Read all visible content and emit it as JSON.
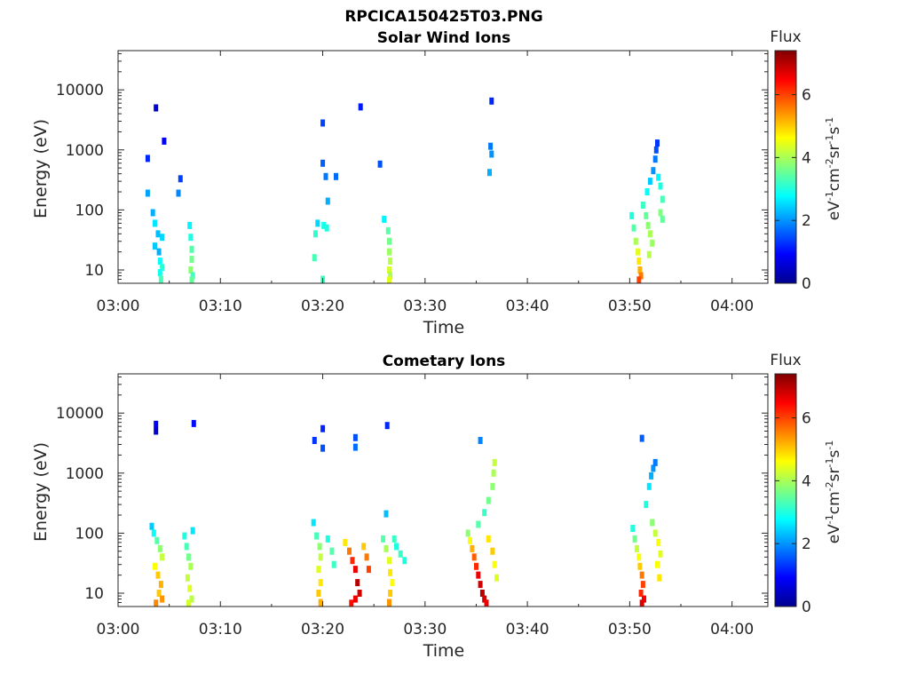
{
  "figure_title": "RPCICA150425T03.PNG",
  "colorbar": {
    "label": "Flux",
    "unit_main": "eV",
    "unit_parts": [
      "eV",
      "-1",
      "cm",
      "-2",
      "sr",
      "-1",
      "s",
      "-1"
    ],
    "ticks": [
      "0",
      "2",
      "4",
      "6"
    ],
    "range": [
      0,
      7.4
    ],
    "colormap": "jet"
  },
  "chart_data": [
    {
      "type": "heatmap",
      "title": "Solar Wind Ions",
      "xlabel": "Time",
      "ylabel": "Energy (eV)",
      "x_ticks": [
        "03:00",
        "03:10",
        "03:20",
        "03:30",
        "03:40",
        "03:50",
        "04:00"
      ],
      "y_ticks": [
        "10",
        "100",
        "1000",
        "10000"
      ],
      "xlim_minutes": [
        0,
        63.5
      ],
      "ylim": [
        6,
        45000
      ],
      "y_scale": "log",
      "points": [
        [
          3.7,
          5000,
          0.6
        ],
        [
          4.5,
          1400,
          0.9
        ],
        [
          2.9,
          720,
          1.2
        ],
        [
          6.1,
          330,
          1.4
        ],
        [
          2.9,
          190,
          2.1
        ],
        [
          5.9,
          190,
          1.9
        ],
        [
          3.4,
          90,
          2.2
        ],
        [
          3.6,
          60,
          2.6
        ],
        [
          3.9,
          40,
          2.3
        ],
        [
          4.3,
          35,
          2.5
        ],
        [
          3.6,
          25,
          2.4
        ],
        [
          4.0,
          20,
          2.2
        ],
        [
          4.1,
          14,
          2.8
        ],
        [
          4.3,
          11,
          3.1
        ],
        [
          4.1,
          9,
          2.9
        ],
        [
          4.2,
          7,
          3.3
        ],
        [
          7.0,
          55,
          2.7
        ],
        [
          7.1,
          35,
          3.0
        ],
        [
          7.2,
          22,
          3.4
        ],
        [
          7.2,
          15,
          3.6
        ],
        [
          7.1,
          10,
          3.8
        ],
        [
          7.3,
          8,
          3.2
        ],
        [
          7.2,
          6.8,
          3.5
        ],
        [
          19.3,
          40,
          3.1
        ],
        [
          19.2,
          16,
          3.3
        ],
        [
          20.0,
          2800,
          1.4
        ],
        [
          20.0,
          600,
          1.6
        ],
        [
          20.3,
          360,
          1.8
        ],
        [
          21.3,
          360,
          1.7
        ],
        [
          20.5,
          140,
          2.2
        ],
        [
          19.5,
          60,
          2.5
        ],
        [
          20.1,
          55,
          2.9
        ],
        [
          20.4,
          50,
          3.0
        ],
        [
          20.0,
          7,
          3.2
        ],
        [
          23.7,
          5200,
          1.1
        ],
        [
          25.6,
          580,
          1.5
        ],
        [
          26.0,
          70,
          2.7
        ],
        [
          26.4,
          45,
          3.4
        ],
        [
          26.5,
          30,
          3.6
        ],
        [
          26.5,
          20,
          3.9
        ],
        [
          26.6,
          14,
          4.1
        ],
        [
          26.5,
          10,
          4.3
        ],
        [
          26.6,
          8,
          4.0
        ],
        [
          26.5,
          6.8,
          4.4
        ],
        [
          36.5,
          6500,
          1.2
        ],
        [
          36.4,
          1150,
          1.8
        ],
        [
          36.5,
          850,
          2.0
        ],
        [
          36.3,
          420,
          2.2
        ],
        [
          50.2,
          80,
          3.0
        ],
        [
          50.4,
          50,
          3.4
        ],
        [
          50.6,
          30,
          4.0
        ],
        [
          50.8,
          20,
          4.4
        ],
        [
          50.9,
          14,
          4.8
        ],
        [
          51.0,
          10,
          5.2
        ],
        [
          51.1,
          8,
          5.6
        ],
        [
          50.9,
          6.8,
          6.0
        ],
        [
          51.3,
          120,
          3.2
        ],
        [
          51.6,
          80,
          3.5
        ],
        [
          51.8,
          55,
          3.8
        ],
        [
          52.0,
          40,
          4.0
        ],
        [
          52.2,
          28,
          3.9
        ],
        [
          51.9,
          18,
          4.1
        ],
        [
          51.7,
          200,
          2.8
        ],
        [
          52.0,
          300,
          2.4
        ],
        [
          52.3,
          450,
          2.0
        ],
        [
          52.5,
          700,
          1.8
        ],
        [
          52.6,
          1000,
          1.5
        ],
        [
          52.7,
          1300,
          1.3
        ],
        [
          52.8,
          350,
          2.7
        ],
        [
          53.0,
          250,
          3.0
        ],
        [
          53.2,
          150,
          3.3
        ],
        [
          53.0,
          90,
          3.7
        ],
        [
          53.2,
          70,
          3.5
        ]
      ]
    },
    {
      "type": "heatmap",
      "title": "Cometary Ions",
      "xlabel": "Time",
      "ylabel": "Energy (eV)",
      "x_ticks": [
        "03:00",
        "03:10",
        "03:20",
        "03:30",
        "03:40",
        "03:50",
        "04:00"
      ],
      "y_ticks": [
        "10",
        "100",
        "1000",
        "10000"
      ],
      "xlim_minutes": [
        0,
        63.5
      ],
      "ylim": [
        6,
        45000
      ],
      "y_scale": "log",
      "points": [
        [
          3.7,
          6500,
          0.9
        ],
        [
          3.7,
          5000,
          0.6
        ],
        [
          7.4,
          6700,
          1.0
        ],
        [
          3.3,
          130,
          2.4
        ],
        [
          3.5,
          100,
          2.8
        ],
        [
          3.8,
          75,
          3.4
        ],
        [
          4.1,
          55,
          3.8
        ],
        [
          4.3,
          40,
          4.2
        ],
        [
          3.6,
          28,
          4.6
        ],
        [
          3.9,
          20,
          5.0
        ],
        [
          4.2,
          14,
          5.2
        ],
        [
          4.0,
          10,
          5.0
        ],
        [
          4.3,
          8,
          5.4
        ],
        [
          3.7,
          6.8,
          5.5
        ],
        [
          6.5,
          90,
          3.0
        ],
        [
          6.7,
          60,
          3.3
        ],
        [
          6.9,
          40,
          3.6
        ],
        [
          7.1,
          28,
          4.0
        ],
        [
          6.8,
          18,
          4.2
        ],
        [
          7.0,
          12,
          4.4
        ],
        [
          7.2,
          8,
          4.1
        ],
        [
          6.9,
          6.8,
          4.3
        ],
        [
          7.3,
          110,
          2.6
        ],
        [
          19.1,
          150,
          2.6
        ],
        [
          19.4,
          90,
          3.3
        ],
        [
          19.7,
          60,
          3.8
        ],
        [
          19.8,
          40,
          4.2
        ],
        [
          19.6,
          25,
          4.4
        ],
        [
          19.8,
          15,
          4.8
        ],
        [
          19.6,
          10,
          5.0
        ],
        [
          19.8,
          7,
          5.2
        ],
        [
          20.5,
          80,
          3.0
        ],
        [
          20.9,
          50,
          3.4
        ],
        [
          21.1,
          30,
          3.2
        ],
        [
          19.2,
          3500,
          1.3
        ],
        [
          20.0,
          5500,
          1.2
        ],
        [
          20.0,
          2600,
          1.5
        ],
        [
          23.2,
          3900,
          1.5
        ],
        [
          23.2,
          2700,
          1.7
        ],
        [
          22.2,
          70,
          4.8
        ],
        [
          22.6,
          50,
          5.6
        ],
        [
          22.9,
          35,
          6.2
        ],
        [
          23.2,
          25,
          6.6
        ],
        [
          23.4,
          15,
          7.0
        ],
        [
          23.6,
          10,
          6.8
        ],
        [
          23.2,
          8,
          6.6
        ],
        [
          22.8,
          6.8,
          6.4
        ],
        [
          24.0,
          60,
          5.0
        ],
        [
          24.3,
          40,
          5.6
        ],
        [
          24.5,
          25,
          6.0
        ],
        [
          26.3,
          6200,
          1.2
        ],
        [
          26.2,
          210,
          2.3
        ],
        [
          25.9,
          80,
          3.4
        ],
        [
          26.2,
          55,
          4.0
        ],
        [
          26.5,
          35,
          4.4
        ],
        [
          26.6,
          22,
          4.8
        ],
        [
          26.8,
          15,
          4.6
        ],
        [
          26.6,
          10,
          5.0
        ],
        [
          26.5,
          7,
          5.4
        ],
        [
          27.0,
          80,
          3.2
        ],
        [
          27.2,
          60,
          3.0
        ],
        [
          27.6,
          45,
          3.2
        ],
        [
          28.0,
          35,
          3.0
        ],
        [
          35.4,
          3500,
          1.9
        ],
        [
          34.2,
          100,
          3.8
        ],
        [
          34.4,
          75,
          4.6
        ],
        [
          34.6,
          55,
          5.2
        ],
        [
          34.8,
          40,
          5.8
        ],
        [
          35.0,
          28,
          6.2
        ],
        [
          35.2,
          20,
          6.6
        ],
        [
          35.4,
          14,
          6.8
        ],
        [
          35.6,
          10,
          7.0
        ],
        [
          35.8,
          8,
          6.8
        ],
        [
          36.0,
          6.8,
          6.6
        ],
        [
          35.2,
          140,
          3.4
        ],
        [
          35.8,
          220,
          3.2
        ],
        [
          36.2,
          350,
          3.6
        ],
        [
          36.6,
          600,
          3.8
        ],
        [
          36.7,
          1000,
          4.0
        ],
        [
          36.8,
          1500,
          4.2
        ],
        [
          36.2,
          80,
          4.8
        ],
        [
          36.6,
          50,
          5.0
        ],
        [
          36.8,
          30,
          4.6
        ],
        [
          37.0,
          18,
          4.4
        ],
        [
          51.2,
          3800,
          1.6
        ],
        [
          50.3,
          120,
          3.0
        ],
        [
          50.5,
          80,
          3.6
        ],
        [
          50.7,
          55,
          4.2
        ],
        [
          50.9,
          40,
          4.6
        ],
        [
          51.0,
          28,
          5.0
        ],
        [
          51.2,
          20,
          5.6
        ],
        [
          51.3,
          14,
          6.0
        ],
        [
          51.1,
          10,
          6.2
        ],
        [
          51.4,
          8,
          6.5
        ],
        [
          51.2,
          6.8,
          6.7
        ],
        [
          51.6,
          300,
          3.0
        ],
        [
          51.9,
          600,
          2.6
        ],
        [
          52.1,
          900,
          2.2
        ],
        [
          52.3,
          1200,
          2.0
        ],
        [
          52.5,
          1500,
          1.8
        ],
        [
          52.2,
          150,
          3.8
        ],
        [
          52.5,
          100,
          4.2
        ],
        [
          52.8,
          70,
          4.6
        ],
        [
          53.0,
          45,
          4.4
        ],
        [
          52.7,
          30,
          4.6
        ],
        [
          52.9,
          18,
          4.8
        ]
      ]
    }
  ]
}
